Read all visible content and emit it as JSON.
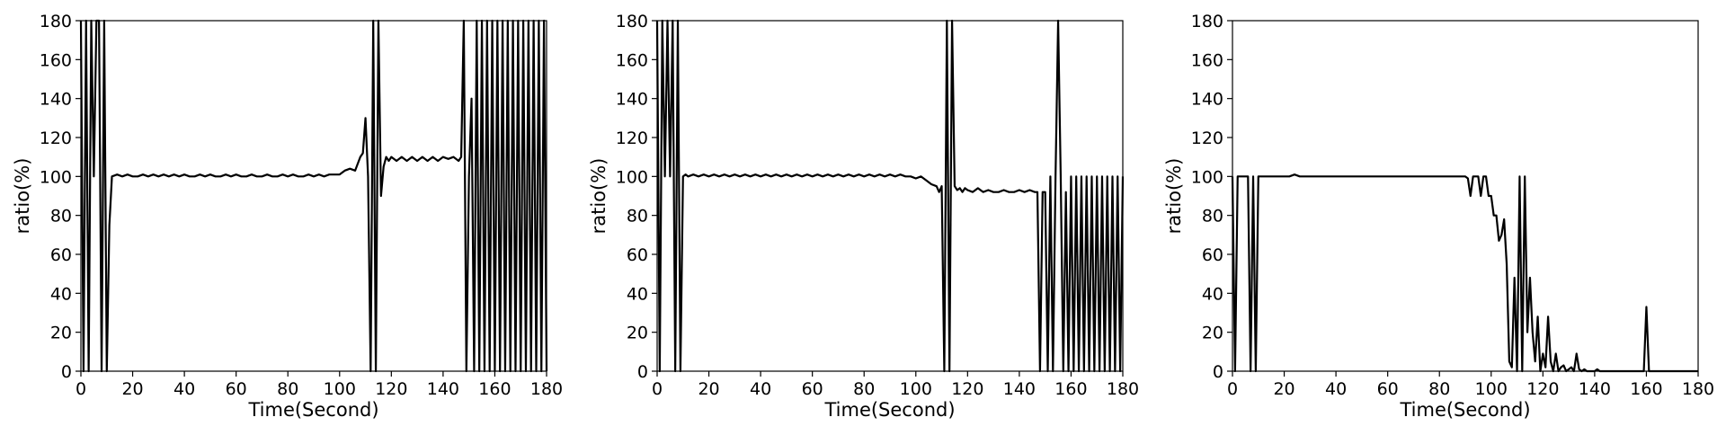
{
  "chart_data": [
    {
      "type": "line",
      "xlabel": "Time(Second)",
      "ylabel": "ratio(%)",
      "xlim": [
        0,
        180
      ],
      "ylim": [
        0,
        180
      ],
      "xticks": [
        "0",
        "20",
        "40",
        "60",
        "80",
        "100",
        "120",
        "140",
        "160",
        "180"
      ],
      "yticks": [
        "0",
        "20",
        "40",
        "60",
        "80",
        "100",
        "120",
        "140",
        "160",
        "180"
      ],
      "grid": false,
      "series": [
        {
          "color": "#000000",
          "x": [
            0,
            1,
            2,
            3,
            4,
            5,
            6,
            7,
            8,
            9,
            10,
            11,
            12,
            14,
            16,
            18,
            20,
            22,
            24,
            26,
            28,
            30,
            32,
            34,
            36,
            38,
            40,
            42,
            44,
            46,
            48,
            50,
            52,
            54,
            56,
            58,
            60,
            62,
            64,
            66,
            68,
            70,
            72,
            74,
            76,
            78,
            80,
            82,
            84,
            86,
            88,
            90,
            92,
            94,
            96,
            98,
            100,
            102,
            104,
            106,
            108,
            109,
            110,
            111,
            112,
            113,
            114,
            115,
            116,
            117,
            118,
            119,
            120,
            122,
            124,
            126,
            128,
            130,
            132,
            134,
            136,
            138,
            140,
            142,
            144,
            146,
            147,
            148,
            149,
            150,
            151,
            152,
            153,
            154,
            155,
            156,
            157,
            158,
            159,
            160,
            161,
            162,
            163,
            164,
            165,
            166,
            167,
            168,
            169,
            170,
            171,
            172,
            173,
            174,
            175,
            176,
            177,
            178,
            179,
            180
          ],
          "y": [
            180,
            0,
            180,
            0,
            180,
            100,
            180,
            180,
            0,
            180,
            0,
            75,
            100,
            101,
            100,
            101,
            100,
            100,
            101,
            100,
            101,
            100,
            101,
            100,
            101,
            100,
            101,
            100,
            100,
            101,
            100,
            101,
            100,
            100,
            101,
            100,
            101,
            100,
            100,
            101,
            100,
            100,
            101,
            100,
            100,
            101,
            100,
            101,
            100,
            100,
            101,
            100,
            101,
            100,
            101,
            101,
            101,
            103,
            104,
            103,
            110,
            112,
            130,
            100,
            0,
            180,
            0,
            180,
            90,
            105,
            110,
            108,
            110,
            108,
            110,
            108,
            110,
            108,
            110,
            108,
            110,
            108,
            110,
            109,
            110,
            108,
            110,
            180,
            0,
            100,
            140,
            0,
            180,
            0,
            180,
            0,
            180,
            0,
            180,
            0,
            180,
            0,
            180,
            0,
            180,
            0,
            180,
            0,
            180,
            0,
            180,
            0,
            180,
            0,
            180,
            0,
            180,
            0,
            180,
            0
          ]
        }
      ]
    },
    {
      "type": "line",
      "xlabel": "Time(Second)",
      "ylabel": "ratio(%)",
      "xlim": [
        0,
        180
      ],
      "ylim": [
        0,
        180
      ],
      "xticks": [
        "0",
        "20",
        "40",
        "60",
        "80",
        "100",
        "120",
        "140",
        "160",
        "180"
      ],
      "yticks": [
        "0",
        "20",
        "40",
        "60",
        "80",
        "100",
        "120",
        "140",
        "160",
        "180"
      ],
      "grid": false,
      "series": [
        {
          "color": "#000000",
          "x": [
            0,
            1,
            2,
            3,
            4,
            5,
            6,
            7,
            8,
            9,
            10,
            11,
            12,
            14,
            16,
            18,
            20,
            22,
            24,
            26,
            28,
            30,
            32,
            34,
            36,
            38,
            40,
            42,
            44,
            46,
            48,
            50,
            52,
            54,
            56,
            58,
            60,
            62,
            64,
            66,
            68,
            70,
            72,
            74,
            76,
            78,
            80,
            82,
            84,
            86,
            88,
            90,
            92,
            94,
            96,
            98,
            100,
            102,
            104,
            106,
            108,
            109,
            110,
            111,
            112,
            113,
            114,
            115,
            116,
            117,
            118,
            119,
            120,
            122,
            124,
            126,
            128,
            130,
            132,
            134,
            136,
            138,
            140,
            142,
            144,
            146,
            147,
            148,
            149,
            150,
            151,
            152,
            153,
            154,
            155,
            156,
            157,
            158,
            159,
            160,
            161,
            162,
            163,
            164,
            165,
            166,
            167,
            168,
            169,
            170,
            171,
            172,
            173,
            174,
            175,
            176,
            177,
            178,
            179,
            180
          ],
          "y": [
            180,
            0,
            180,
            100,
            180,
            100,
            180,
            0,
            180,
            0,
            100,
            101,
            100,
            101,
            100,
            101,
            100,
            101,
            100,
            101,
            100,
            101,
            100,
            101,
            100,
            101,
            100,
            101,
            100,
            101,
            100,
            101,
            100,
            101,
            100,
            101,
            100,
            101,
            100,
            101,
            100,
            101,
            100,
            101,
            100,
            101,
            100,
            101,
            100,
            101,
            100,
            101,
            100,
            101,
            100,
            100,
            99,
            100,
            98,
            96,
            95,
            92,
            95,
            0,
            180,
            0,
            180,
            95,
            93,
            94,
            92,
            94,
            93,
            92,
            94,
            92,
            93,
            92,
            92,
            93,
            92,
            92,
            93,
            92,
            93,
            92,
            92,
            0,
            92,
            92,
            0,
            100,
            0,
            100,
            180,
            100,
            0,
            92,
            0,
            100,
            0,
            100,
            0,
            100,
            0,
            100,
            0,
            100,
            0,
            100,
            0,
            100,
            0,
            100,
            0,
            100,
            0,
            100,
            0,
            100
          ]
        }
      ]
    },
    {
      "type": "line",
      "xlabel": "Time(Second)",
      "ylabel": "ratio(%)",
      "xlim": [
        0,
        180
      ],
      "ylim": [
        0,
        180
      ],
      "xticks": [
        "0",
        "20",
        "40",
        "60",
        "80",
        "100",
        "120",
        "140",
        "160",
        "180"
      ],
      "yticks": [
        "0",
        "20",
        "40",
        "60",
        "80",
        "100",
        "120",
        "140",
        "160",
        "180"
      ],
      "grid": false,
      "series": [
        {
          "color": "#000000",
          "x": [
            0,
            1,
            2,
            3,
            4,
            5,
            6,
            7,
            8,
            9,
            10,
            11,
            12,
            14,
            16,
            18,
            20,
            22,
            24,
            26,
            28,
            30,
            40,
            50,
            60,
            70,
            80,
            90,
            91,
            92,
            93,
            94,
            95,
            96,
            97,
            98,
            99,
            100,
            101,
            102,
            103,
            104,
            105,
            106,
            107,
            108,
            109,
            110,
            111,
            112,
            113,
            114,
            115,
            116,
            117,
            118,
            119,
            120,
            121,
            122,
            123,
            124,
            125,
            126,
            127,
            128,
            129,
            130,
            131,
            132,
            133,
            134,
            135,
            136,
            137,
            138,
            139,
            140,
            141,
            142,
            143,
            144,
            145,
            146,
            147,
            148,
            149,
            150,
            152,
            155,
            158,
            159,
            160,
            161,
            162,
            163,
            165,
            170,
            175,
            180
          ],
          "y": [
            100,
            0,
            100,
            100,
            100,
            100,
            100,
            0,
            100,
            0,
            100,
            100,
            100,
            100,
            100,
            100,
            100,
            100,
            101,
            100,
            100,
            100,
            100,
            100,
            100,
            100,
            100,
            100,
            99,
            90,
            100,
            100,
            100,
            90,
            100,
            100,
            90,
            90,
            80,
            80,
            67,
            70,
            78,
            55,
            5,
            2,
            48,
            0,
            100,
            0,
            100,
            20,
            48,
            20,
            5,
            28,
            0,
            9,
            2,
            28,
            5,
            0,
            9,
            0,
            2,
            3,
            0,
            1,
            2,
            0,
            9,
            1,
            0,
            1,
            0,
            0,
            0,
            0,
            1,
            0,
            0,
            0,
            0,
            0,
            0,
            0,
            0,
            0,
            0,
            0,
            0,
            0,
            33,
            0,
            0,
            0,
            0,
            0,
            0,
            0
          ]
        }
      ]
    }
  ]
}
